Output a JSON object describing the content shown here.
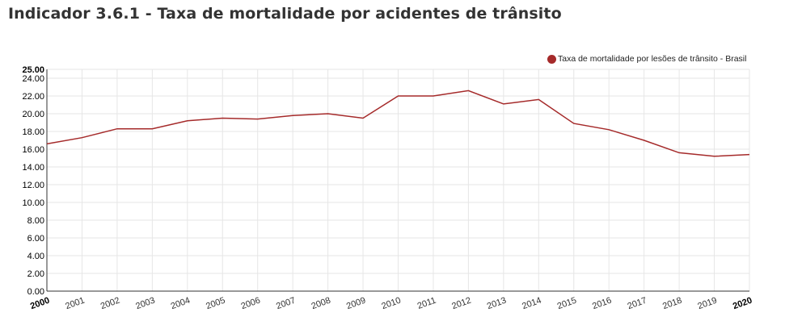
{
  "title": "Indicador 3.6.1 - Taxa de mortalidade por acidentes de trânsito",
  "chart_data": {
    "type": "line",
    "title": "",
    "xlabel": "",
    "ylabel": "",
    "x": [
      "2000",
      "2001",
      "2002",
      "2003",
      "2004",
      "2005",
      "2006",
      "2007",
      "2008",
      "2009",
      "2010",
      "2011",
      "2012",
      "2013",
      "2014",
      "2015",
      "2016",
      "2017",
      "2018",
      "2019",
      "2020"
    ],
    "series": [
      {
        "name": "Taxa de mortalidade por lesões de trânsito - Brasil",
        "color": "#a52a2a",
        "values": [
          16.6,
          17.3,
          18.3,
          18.3,
          19.2,
          19.5,
          19.4,
          19.8,
          20.0,
          19.5,
          22.0,
          22.0,
          22.6,
          21.1,
          21.6,
          18.9,
          18.2,
          17.0,
          15.6,
          15.2,
          15.4
        ]
      }
    ],
    "ylim": [
      0,
      25
    ],
    "yticks": [
      "0.00",
      "2.00",
      "4.00",
      "6.00",
      "8.00",
      "10.00",
      "12.00",
      "14.00",
      "16.00",
      "18.00",
      "20.00",
      "22.00",
      "24.00",
      "25.00"
    ],
    "grid": true,
    "legend_position": "top-right"
  }
}
